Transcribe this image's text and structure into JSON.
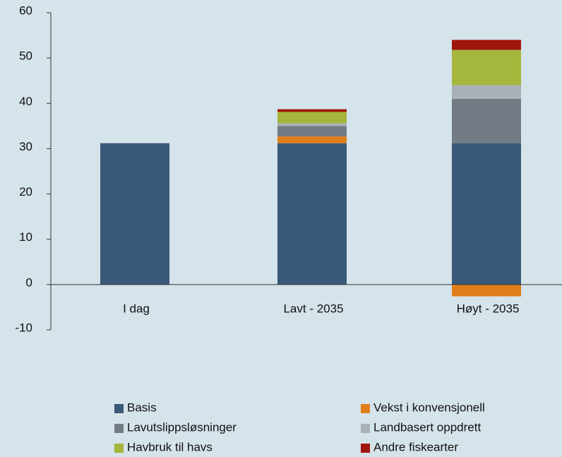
{
  "chart_data": {
    "type": "stacked_bar",
    "categories": [
      "I dag",
      "Lavt - 2035",
      "Høyt - 2035"
    ],
    "series": [
      {
        "name": "Basis",
        "color": "#3a5878",
        "values": [
          31.2,
          31.2,
          31.2
        ]
      },
      {
        "name": "Vekst i konvensjonell",
        "color": "#e07f1a",
        "values": [
          0,
          1.5,
          -2.6
        ]
      },
      {
        "name": "Lavutslippsløsninger",
        "color": "#737b84",
        "values": [
          0,
          2.3,
          9.8
        ]
      },
      {
        "name": "Landbasert oppdrett",
        "color": "#a9b1b8",
        "values": [
          0,
          0.6,
          3.0
        ]
      },
      {
        "name": "Havbruk til havs",
        "color": "#a5b63c",
        "values": [
          0,
          2.5,
          7.8
        ]
      },
      {
        "name": "Andre fiskearter",
        "color": "#a0160d",
        "values": [
          0,
          0.6,
          2.2
        ]
      }
    ],
    "ylim": [
      -10,
      60
    ],
    "yticks": [
      -10,
      0,
      10,
      20,
      30,
      40,
      50,
      60
    ]
  }
}
